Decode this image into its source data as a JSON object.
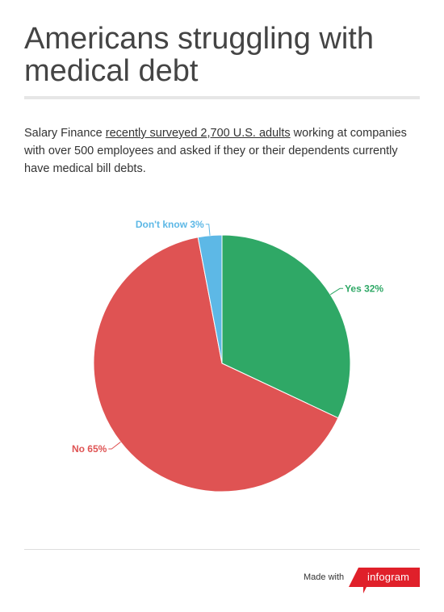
{
  "header": {
    "title": "Americans struggling with medical debt"
  },
  "description": {
    "text_before": "Salary Finance ",
    "link_text": "recently surveyed 2,700 U.S. adults",
    "text_after": " working at companies with over 500 employees and asked if they or their dependents currently have medical bill debts."
  },
  "chart_data": {
    "type": "pie",
    "start_angle_deg": 0,
    "direction": "clockwise",
    "legend": "none",
    "slices": [
      {
        "label": "Yes 32%",
        "value": 32,
        "color": "#2fa866"
      },
      {
        "label": "No 65%",
        "value": 65,
        "color": "#df5353"
      },
      {
        "label": "Don't know 3%",
        "value": 3,
        "color": "#5db8e6"
      }
    ]
  },
  "footer": {
    "made_with": "Made with",
    "brand": "infogram",
    "brand_color": "#e0202a"
  }
}
